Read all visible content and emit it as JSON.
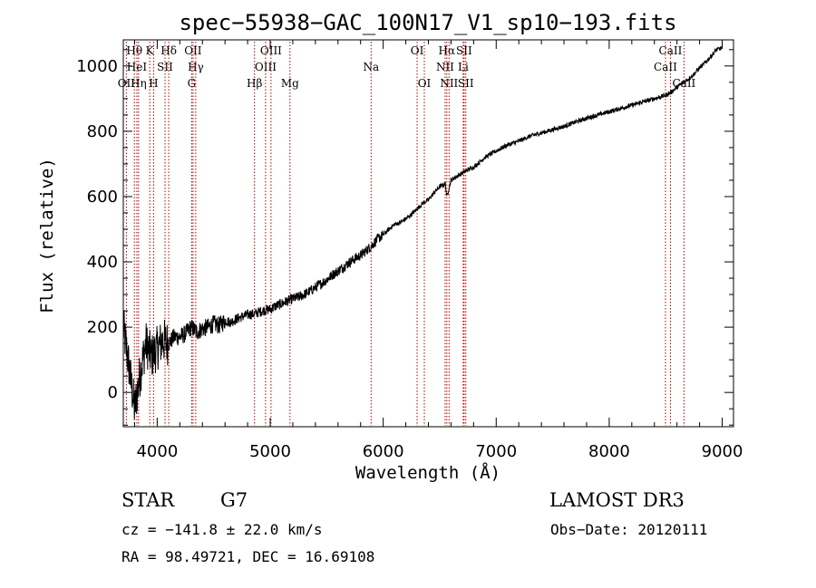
{
  "chart_data": {
    "type": "line",
    "title": "spec−55938−GAC_100N17_V1_sp10−193.fits",
    "xlabel": "Wavelength (Å)",
    "ylabel": "Flux (relative)",
    "xlim": [
      3700,
      9100
    ],
    "ylim": [
      -105,
      1080
    ],
    "x_ticks": [
      4000,
      5000,
      6000,
      7000,
      8000,
      9000
    ],
    "y_ticks": [
      0,
      200,
      400,
      600,
      800,
      1000
    ],
    "grid": false,
    "series": [
      {
        "name": "spectrum",
        "x": [
          3700,
          3750,
          3800,
          3850,
          3900,
          3950,
          4000,
          4050,
          4100,
          4150,
          4200,
          4250,
          4300,
          4350,
          4400,
          4450,
          4500,
          4550,
          4600,
          4650,
          4700,
          4750,
          4800,
          4850,
          4900,
          4950,
          5000,
          5050,
          5100,
          5150,
          5200,
          5250,
          5300,
          5350,
          5400,
          5450,
          5500,
          5550,
          5600,
          5650,
          5700,
          5750,
          5800,
          5850,
          5900,
          5950,
          6000,
          6050,
          6100,
          6150,
          6200,
          6250,
          6300,
          6350,
          6400,
          6450,
          6500,
          6550,
          6563,
          6600,
          6650,
          6700,
          6750,
          6800,
          6850,
          6900,
          6950,
          7000,
          7100,
          7200,
          7300,
          7400,
          7500,
          7600,
          7700,
          7800,
          7900,
          8000,
          8100,
          8200,
          8300,
          8350,
          8400,
          8450,
          8500,
          8550,
          8600,
          8650,
          8700,
          8750,
          8800,
          8850,
          8900,
          8950,
          9000
        ],
        "y": [
          200,
          80,
          -50,
          60,
          150,
          110,
          135,
          160,
          150,
          170,
          170,
          180,
          200,
          185,
          195,
          200,
          210,
          205,
          220,
          215,
          225,
          232,
          238,
          240,
          246,
          252,
          255,
          265,
          272,
          280,
          287,
          292,
          300,
          310,
          322,
          333,
          345,
          360,
          372,
          385,
          398,
          410,
          420,
          435,
          450,
          470,
          482,
          500,
          515,
          520,
          532,
          545,
          562,
          580,
          590,
          612,
          630,
          640,
          600,
          650,
          662,
          672,
          682,
          690,
          705,
          720,
          730,
          740,
          758,
          770,
          785,
          795,
          805,
          815,
          828,
          840,
          850,
          860,
          870,
          880,
          890,
          895,
          900,
          905,
          910,
          920,
          935,
          948,
          960,
          975,
          995,
          1010,
          1030,
          1050,
          1055
        ]
      }
    ],
    "spectral_lines": [
      {
        "label": "Hθ",
        "wavelength": 3798,
        "row": 0
      },
      {
        "label": "K",
        "wavelength": 3934,
        "row": 0
      },
      {
        "label": "Hδ",
        "wavelength": 4102,
        "row": 0
      },
      {
        "label": "OII",
        "wavelength": 4317,
        "row": 0
      },
      {
        "label": "OIII",
        "wavelength": 5007,
        "row": 0
      },
      {
        "label": "OI",
        "wavelength": 6300,
        "row": 0
      },
      {
        "label": "Hα",
        "wavelength": 6563,
        "row": 0
      },
      {
        "label": "SII",
        "wavelength": 6716,
        "row": 0
      },
      {
        "label": "CaII",
        "wavelength": 8542,
        "row": 0
      },
      {
        "label": "HeI",
        "wavelength": 3820,
        "row": 1
      },
      {
        "label": "SII",
        "wavelength": 4069,
        "row": 1
      },
      {
        "label": "Hγ",
        "wavelength": 4341,
        "row": 1
      },
      {
        "label": "OIII",
        "wavelength": 4959,
        "row": 1
      },
      {
        "label": "Na",
        "wavelength": 5893,
        "row": 1
      },
      {
        "label": "NII",
        "wavelength": 6548,
        "row": 1
      },
      {
        "label": "Li",
        "wavelength": 6708,
        "row": 1
      },
      {
        "label": "CaII",
        "wavelength": 8498,
        "row": 1
      },
      {
        "label": "OII",
        "wavelength": 3727,
        "row": 2
      },
      {
        "label": "Hη",
        "wavelength": 3835,
        "row": 2
      },
      {
        "label": "H",
        "wavelength": 3968,
        "row": 2
      },
      {
        "label": "G",
        "wavelength": 4305,
        "row": 2
      },
      {
        "label": "Hβ",
        "wavelength": 4861,
        "row": 2
      },
      {
        "label": "Mg",
        "wavelength": 5175,
        "row": 2
      },
      {
        "label": "OI",
        "wavelength": 6364,
        "row": 2
      },
      {
        "label": "NII",
        "wavelength": 6583,
        "row": 2
      },
      {
        "label": "SII",
        "wavelength": 6731,
        "row": 2
      },
      {
        "label": "CaII",
        "wavelength": 8662,
        "row": 2
      }
    ]
  },
  "footer": {
    "object_class": "STAR",
    "subclass": "G7",
    "survey": "LAMOST DR3",
    "velocity": "cz = −141.8 ± 22.0 km/s",
    "obs_date": "Obs−Date: 20120111",
    "coords": "RA =  98.49721, DEC =  16.69108"
  }
}
